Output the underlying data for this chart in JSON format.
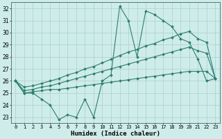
{
  "x": [
    0,
    1,
    2,
    3,
    4,
    5,
    6,
    7,
    8,
    9,
    10,
    11,
    12,
    13,
    14,
    15,
    16,
    17,
    18,
    19,
    20,
    21,
    22,
    23
  ],
  "line_main": [
    26.0,
    25.0,
    25.0,
    24.5,
    24.0,
    22.8,
    23.2,
    23.0,
    24.5,
    23.0,
    26.0,
    26.5,
    32.2,
    31.0,
    28.0,
    31.8,
    31.5,
    31.0,
    30.5,
    29.5,
    29.2,
    27.8,
    26.0,
    26.2
  ],
  "line_upper": [
    26.0,
    25.5,
    25.6,
    25.8,
    26.0,
    26.2,
    26.5,
    26.7,
    27.0,
    27.2,
    27.5,
    27.8,
    28.1,
    28.4,
    28.6,
    28.9,
    29.1,
    29.4,
    29.6,
    29.9,
    30.1,
    29.5,
    29.2,
    26.2
  ],
  "line_mid": [
    26.0,
    25.2,
    25.3,
    25.5,
    25.6,
    25.8,
    26.0,
    26.2,
    26.4,
    26.6,
    26.8,
    27.0,
    27.2,
    27.4,
    27.6,
    27.8,
    28.0,
    28.2,
    28.4,
    28.6,
    28.8,
    28.5,
    28.3,
    26.2
  ],
  "line_lower": [
    26.0,
    25.0,
    25.1,
    25.2,
    25.3,
    25.3,
    25.4,
    25.5,
    25.6,
    25.7,
    25.8,
    25.9,
    26.0,
    26.1,
    26.2,
    26.3,
    26.4,
    26.5,
    26.6,
    26.7,
    26.8,
    26.8,
    26.8,
    26.2
  ],
  "ylim": [
    22.5,
    32.5
  ],
  "yticks": [
    23,
    24,
    25,
    26,
    27,
    28,
    29,
    30,
    31,
    32
  ],
  "xticks": [
    0,
    1,
    2,
    3,
    4,
    5,
    6,
    7,
    8,
    9,
    10,
    11,
    12,
    13,
    14,
    15,
    16,
    17,
    18,
    19,
    20,
    21,
    22,
    23
  ],
  "xlabel": "Humidex (Indice chaleur)",
  "color": "#2d7d6e",
  "bg_color": "#ceecea",
  "grid_color": "#aacfcd",
  "markersize": 2.0,
  "linewidth": 0.8,
  "title_fontsize": 7,
  "tick_fontsize": 5,
  "xlabel_fontsize": 6.5
}
